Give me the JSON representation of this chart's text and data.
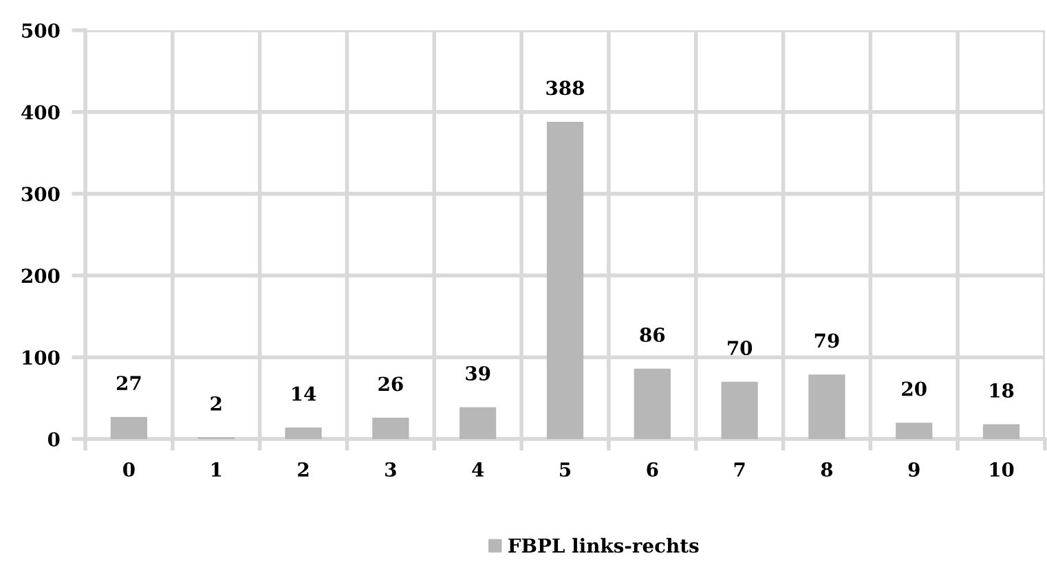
{
  "chart_data": {
    "type": "bar",
    "categories": [
      "0",
      "1",
      "2",
      "3",
      "4",
      "5",
      "6",
      "7",
      "8",
      "9",
      "10"
    ],
    "series": [
      {
        "name": "FBPL links-rechts",
        "color": "#b7b7b7",
        "values": [
          27,
          2,
          14,
          26,
          39,
          388,
          86,
          70,
          79,
          20,
          18
        ]
      }
    ],
    "ylim": [
      0,
      500
    ],
    "yticks": [
      0,
      100,
      200,
      300,
      400,
      500
    ],
    "grid": true,
    "legend": "bottom",
    "data_labels": true
  }
}
